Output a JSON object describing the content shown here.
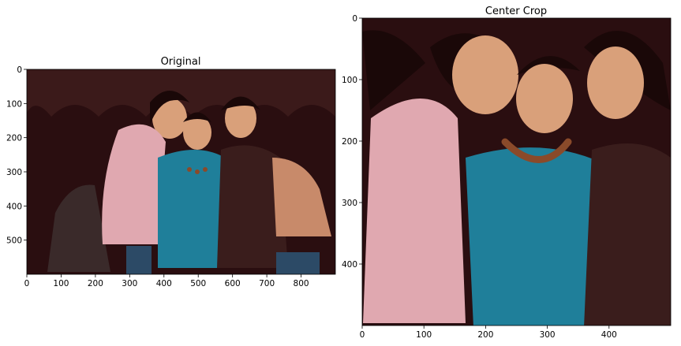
{
  "chart_data": [
    {
      "type": "image",
      "title": "Original",
      "xlim": [
        0,
        900
      ],
      "ylim": [
        600,
        0
      ],
      "xticks": [
        0,
        100,
        200,
        300,
        400,
        500,
        600,
        700,
        800
      ],
      "yticks": [
        0,
        100,
        200,
        300,
        400,
        500
      ],
      "image_description": "photo of three smiling young women standing together",
      "image_palette": {
        "background": "#2a0e10",
        "pink_top": "#e0a8b0",
        "teal_top": "#1f7f9a",
        "brown_top": "#3a1d1c",
        "skin": "#d9a07a",
        "hair": "#1a0808",
        "bag": "#c88a6a",
        "dark_bag": "#3a2a2a",
        "jeans": "#2c4a66"
      }
    },
    {
      "type": "image",
      "title": "Center Crop",
      "xlim": [
        0,
        500
      ],
      "ylim": [
        500,
        0
      ],
      "xticks": [
        0,
        100,
        200,
        300,
        400
      ],
      "yticks": [
        0,
        100,
        200,
        300,
        400
      ],
      "image_description": "center crop of the same photo of three smiling young women",
      "image_palette": {
        "background": "#2a0e10",
        "pink_top": "#e0a8b0",
        "teal_top": "#1f7f9a",
        "brown_top": "#3a1d1c",
        "skin": "#d9a07a",
        "hair": "#1a0808",
        "necklace": "#8a4a2a"
      }
    }
  ]
}
